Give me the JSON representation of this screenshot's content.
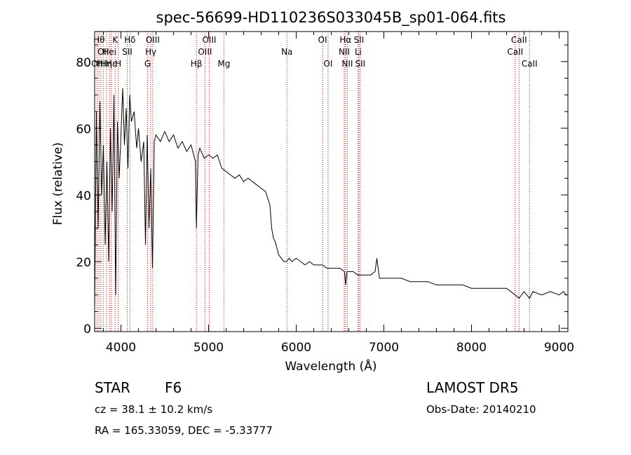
{
  "chart_data": {
    "type": "line",
    "title": "spec-56699-HD110236S033045B_sp01-064.fits",
    "xlabel": "Wavelength (Å)",
    "ylabel": "Flux (relative)",
    "xlim": [
      3700,
      9100
    ],
    "ylim": [
      -1,
      89
    ],
    "xticks": [
      4000,
      5000,
      6000,
      7000,
      8000,
      9000
    ],
    "xtick_labels": [
      "4000",
      "5000",
      "6000",
      "7000",
      "8000",
      "9000"
    ],
    "yticks": [
      0,
      20,
      40,
      60,
      80
    ],
    "ytick_labels": [
      "0",
      "20",
      "40",
      "60",
      "80"
    ],
    "grid": false,
    "series": [
      {
        "x": [
          3700,
          3720,
          3740,
          3760,
          3780,
          3800,
          3820,
          3840,
          3860,
          3880,
          3900,
          3920,
          3940,
          3960,
          3980,
          4000,
          4020,
          4040,
          4060,
          4080,
          4100,
          4120,
          4150,
          4180,
          4200,
          4230,
          4260,
          4280,
          4300,
          4320,
          4340,
          4360,
          4380,
          4400,
          4450,
          4500,
          4550,
          4600,
          4650,
          4700,
          4750,
          4800,
          4850,
          4861,
          4880,
          4900,
          4950,
          5000,
          5050,
          5100,
          5150,
          5200,
          5250,
          5300,
          5350,
          5400,
          5450,
          5500,
          5550,
          5600,
          5650,
          5700,
          5720,
          5740,
          5760,
          5780,
          5800,
          5830,
          5860,
          5890,
          5920,
          5950,
          6000,
          6050,
          6100,
          6150,
          6200,
          6250,
          6300,
          6350,
          6400,
          6450,
          6500,
          6550,
          6563,
          6580,
          6600,
          6650,
          6700,
          6750,
          6800,
          6850,
          6900,
          6920,
          6950,
          7000,
          7100,
          7200,
          7300,
          7400,
          7500,
          7600,
          7700,
          7800,
          7900,
          8000,
          8100,
          8200,
          8300,
          8400,
          8498,
          8542,
          8600,
          8662,
          8700,
          8800,
          8900,
          9000,
          9050,
          9080
        ],
        "y": [
          5,
          65,
          30,
          68,
          40,
          55,
          25,
          50,
          20,
          60,
          35,
          70,
          10,
          62,
          45,
          58,
          72,
          55,
          66,
          48,
          70,
          62,
          65,
          54,
          60,
          50,
          56,
          25,
          58,
          30,
          48,
          18,
          56,
          58,
          56,
          59,
          56,
          58,
          54,
          56,
          53,
          55,
          50,
          30,
          52,
          54,
          51,
          52,
          51,
          52,
          48,
          47,
          46,
          45,
          46,
          44,
          45,
          44,
          43,
          42,
          41,
          37,
          30,
          27,
          26,
          24,
          22,
          21,
          20,
          20,
          21,
          20,
          21,
          20,
          19,
          20,
          19,
          19,
          19,
          18,
          18,
          18,
          18,
          17,
          13,
          17,
          17,
          17,
          16,
          16,
          16,
          16,
          17,
          21,
          15,
          15,
          15,
          15,
          14,
          14,
          14,
          13,
          13,
          13,
          13,
          12,
          12,
          12,
          12,
          12,
          10,
          9,
          11,
          9,
          11,
          10,
          11,
          10,
          11,
          10
        ]
      }
    ],
    "line_markers": [
      {
        "wavelength": 3727,
        "label": "OII",
        "row": 3
      },
      {
        "wavelength": 3750,
        "label": "Hθ",
        "row": 1
      },
      {
        "wavelength": 3771,
        "label": "Hi",
        "row": 3
      },
      {
        "wavelength": 3798,
        "label": "OII",
        "row": 2
      },
      {
        "wavelength": 3835,
        "label": "Hη",
        "row": 3
      },
      {
        "wavelength": 3869,
        "label": "Hei",
        "row": 2
      },
      {
        "wavelength": 3889,
        "label": "Hε",
        "row": 3
      },
      {
        "wavelength": 3934,
        "label": "K",
        "row": 1
      },
      {
        "wavelength": 3969,
        "label": "H",
        "row": 3
      },
      {
        "wavelength": 4072,
        "label": "SII",
        "row": 2
      },
      {
        "wavelength": 4102,
        "label": "Hδ",
        "row": 1
      },
      {
        "wavelength": 4304,
        "label": "G",
        "row": 3
      },
      {
        "wavelength": 4340,
        "label": "Hγ",
        "row": 2
      },
      {
        "wavelength": 4363,
        "label": "OIII",
        "row": 1
      },
      {
        "wavelength": 4861,
        "label": "Hβ",
        "row": 3
      },
      {
        "wavelength": 4959,
        "label": "OIII",
        "row": 2
      },
      {
        "wavelength": 5007,
        "label": "OIII",
        "row": 1
      },
      {
        "wavelength": 5175,
        "label": "Mg",
        "row": 3
      },
      {
        "wavelength": 5894,
        "label": "Na",
        "row": 2
      },
      {
        "wavelength": 6300,
        "label": "OI",
        "row": 1
      },
      {
        "wavelength": 6363,
        "label": "OI",
        "row": 3
      },
      {
        "wavelength": 6548,
        "label": "NII",
        "row": 2
      },
      {
        "wavelength": 6563,
        "label": "Hα",
        "row": 1
      },
      {
        "wavelength": 6583,
        "label": "NII",
        "row": 3
      },
      {
        "wavelength": 6707,
        "label": "Li",
        "row": 2
      },
      {
        "wavelength": 6716,
        "label": "SII",
        "row": 1
      },
      {
        "wavelength": 6731,
        "label": "SII",
        "row": 3
      },
      {
        "wavelength": 8498,
        "label": "CaII",
        "row": 2
      },
      {
        "wavelength": 8542,
        "label": "CaII",
        "row": 1
      },
      {
        "wavelength": 8662,
        "label": "CaII",
        "row": 3
      }
    ],
    "marker_color": "#cc0000"
  },
  "info": {
    "class": "STAR",
    "subclass": "F6",
    "survey": "LAMOST DR5",
    "cz": "cz = 38.1 ± 10.2 km/s",
    "obs_date": "Obs-Date: 20140210",
    "coords": "RA = 165.33059, DEC =  -5.33777"
  }
}
